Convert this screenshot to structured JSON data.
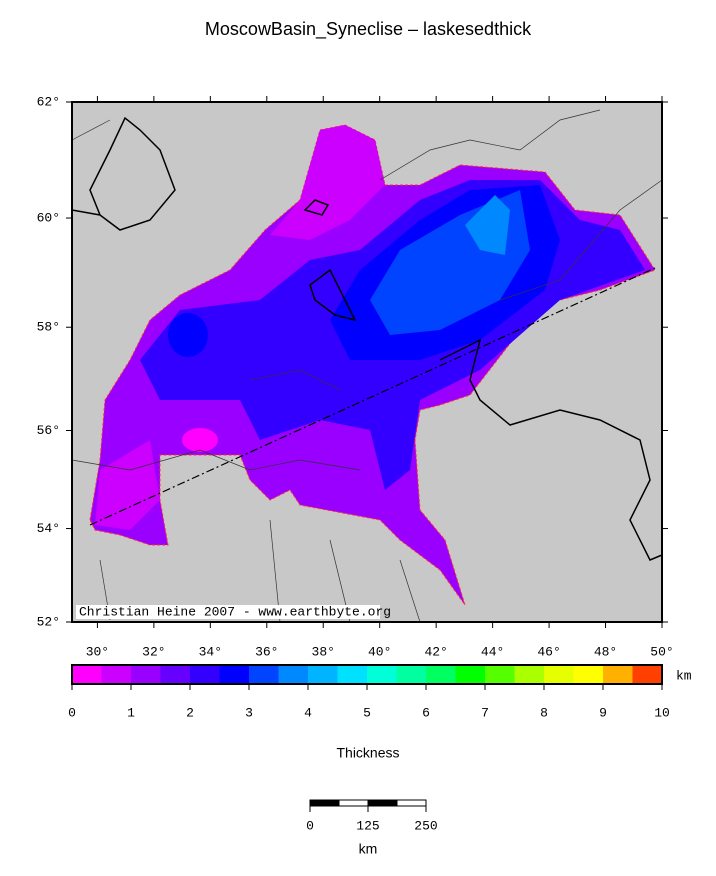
{
  "map": {
    "title": "MoscowBasin_Syneclise – laskesedthick",
    "credit": "Christian Heine 2007 - www.earthbyte.org",
    "lonlim": [
      29.1,
      50
    ],
    "latlim": [
      52,
      62
    ],
    "lonticks": [
      {
        "value": 30,
        "label": "30°"
      },
      {
        "value": 32,
        "label": "32°"
      },
      {
        "value": 34,
        "label": "34°"
      },
      {
        "value": 36,
        "label": "36°"
      },
      {
        "value": 38,
        "label": "38°"
      },
      {
        "value": 40,
        "label": "40°"
      },
      {
        "value": 42,
        "label": "42°"
      },
      {
        "value": 44,
        "label": "44°"
      },
      {
        "value": 46,
        "label": "46°"
      },
      {
        "value": 48,
        "label": "48°"
      },
      {
        "value": 50,
        "label": "50°"
      }
    ],
    "latticks": [
      {
        "value": 52,
        "label": "52°"
      },
      {
        "value": 54,
        "label": "54°"
      },
      {
        "value": 56,
        "label": "56°"
      },
      {
        "value": 58,
        "label": "58°"
      },
      {
        "value": 60,
        "label": "60°"
      },
      {
        "value": 62,
        "label": "62°"
      }
    ],
    "colorbar": {
      "label": "Thickness",
      "unit": "km",
      "lim": [
        0,
        10
      ],
      "ticks": [
        0,
        1,
        2,
        3,
        4,
        5,
        6,
        7,
        8,
        9,
        10
      ],
      "colors": [
        "#ff00ff",
        "#cc00ff",
        "#9900ff",
        "#6600ff",
        "#3300ff",
        "#0000ff",
        "#0044ff",
        "#0088ff",
        "#00b4ff",
        "#00e0ff",
        "#00ffd8",
        "#00ffa0",
        "#00ff60",
        "#00ff00",
        "#55ff00",
        "#aaff00",
        "#e6ff00",
        "#ffff00",
        "#ffb000",
        "#ff4000"
      ]
    },
    "scalebar": {
      "unit": "km",
      "ticks": [
        0,
        125,
        250
      ]
    }
  }
}
